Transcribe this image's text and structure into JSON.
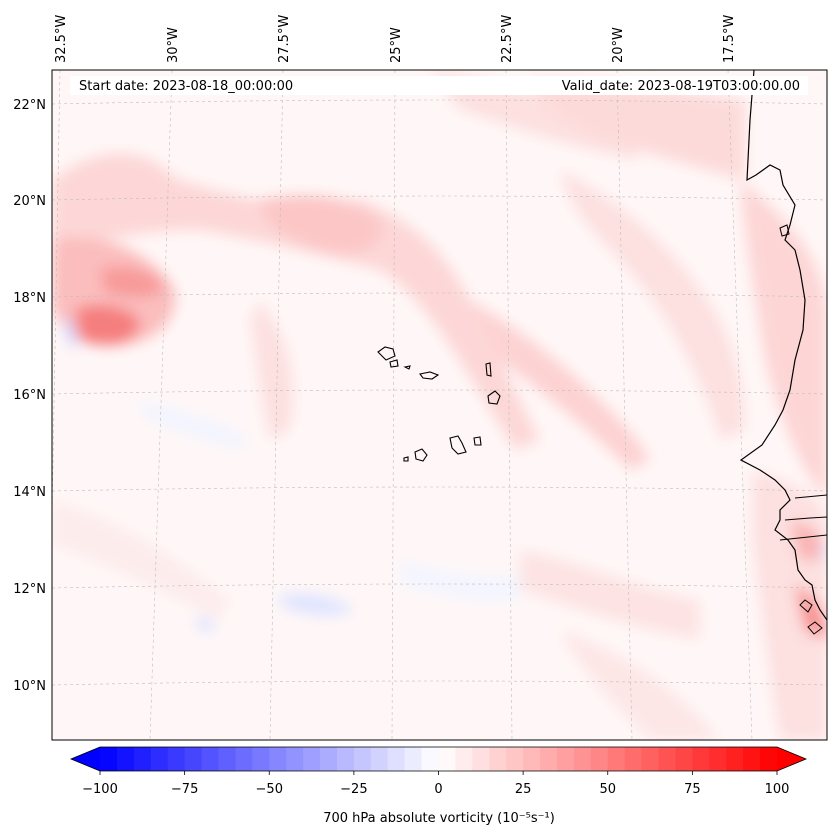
{
  "header": {
    "start_label": "Start date: 2023-08-18_00:00:00",
    "valid_label": "Valid_date: 2023-08-19T03:00:00.00"
  },
  "map": {
    "lon_labels": [
      "32.5°W",
      "30°W",
      "27.5°W",
      "25°W",
      "22.5°W",
      "20°W",
      "17.5°W"
    ],
    "lat_labels": [
      "22°N",
      "20°N",
      "18°N",
      "16°N",
      "14°N",
      "12°N",
      "10°N"
    ],
    "lon_values": [
      -32.5,
      -30,
      -27.5,
      -25,
      -22.5,
      -20,
      -17.5
    ],
    "lat_values": [
      22,
      20,
      18,
      16,
      14,
      12,
      10
    ],
    "extent": {
      "lon": [
        -33,
        -16
      ],
      "lat": [
        9,
        22.7
      ]
    },
    "grid": true
  },
  "colorbar": {
    "label": "700 hPa absolute vorticity (10⁻⁵s⁻¹)",
    "ticks": [
      "−100",
      "−75",
      "−50",
      "−25",
      "0",
      "25",
      "50",
      "75",
      "100"
    ],
    "range": [
      -100,
      100
    ],
    "colormap": "bwr",
    "extend": "both"
  },
  "colors": {
    "neg_max": "#0000ff",
    "pos_max": "#ff0000",
    "zero": "#ffffff",
    "coastline": "#000000"
  }
}
